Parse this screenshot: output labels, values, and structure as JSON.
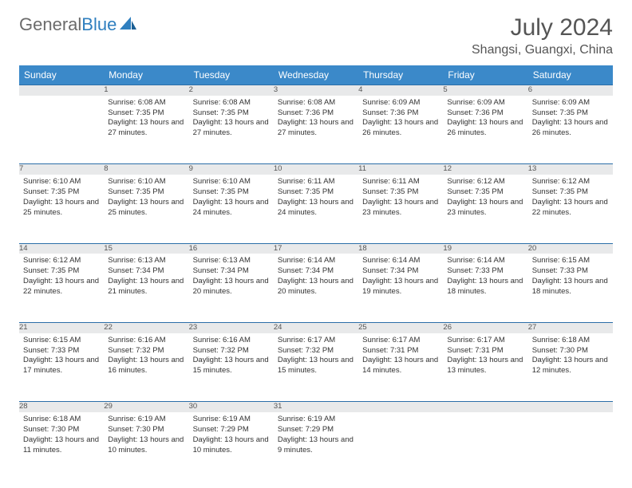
{
  "logo": {
    "textGray": "General",
    "textBlue": "Blue"
  },
  "header": {
    "title": "July 2024",
    "location": "Shangsi, Guangxi, China"
  },
  "colors": {
    "headerBg": "#3b89c9",
    "headerText": "#ffffff",
    "dayNumBg": "#e8e9ea",
    "dayBorderTop": "#2b6ea8",
    "bodyText": "#333333",
    "titleText": "#555555",
    "logoGray": "#6b6b6b",
    "logoBlue": "#2f7fbf"
  },
  "weekdays": [
    "Sunday",
    "Monday",
    "Tuesday",
    "Wednesday",
    "Thursday",
    "Friday",
    "Saturday"
  ],
  "firstWeekday": 1,
  "days": [
    {
      "n": 1,
      "sunrise": "6:08 AM",
      "sunset": "7:35 PM",
      "dl": "13 hours and 27 minutes."
    },
    {
      "n": 2,
      "sunrise": "6:08 AM",
      "sunset": "7:35 PM",
      "dl": "13 hours and 27 minutes."
    },
    {
      "n": 3,
      "sunrise": "6:08 AM",
      "sunset": "7:36 PM",
      "dl": "13 hours and 27 minutes."
    },
    {
      "n": 4,
      "sunrise": "6:09 AM",
      "sunset": "7:36 PM",
      "dl": "13 hours and 26 minutes."
    },
    {
      "n": 5,
      "sunrise": "6:09 AM",
      "sunset": "7:36 PM",
      "dl": "13 hours and 26 minutes."
    },
    {
      "n": 6,
      "sunrise": "6:09 AM",
      "sunset": "7:35 PM",
      "dl": "13 hours and 26 minutes."
    },
    {
      "n": 7,
      "sunrise": "6:10 AM",
      "sunset": "7:35 PM",
      "dl": "13 hours and 25 minutes."
    },
    {
      "n": 8,
      "sunrise": "6:10 AM",
      "sunset": "7:35 PM",
      "dl": "13 hours and 25 minutes."
    },
    {
      "n": 9,
      "sunrise": "6:10 AM",
      "sunset": "7:35 PM",
      "dl": "13 hours and 24 minutes."
    },
    {
      "n": 10,
      "sunrise": "6:11 AM",
      "sunset": "7:35 PM",
      "dl": "13 hours and 24 minutes."
    },
    {
      "n": 11,
      "sunrise": "6:11 AM",
      "sunset": "7:35 PM",
      "dl": "13 hours and 23 minutes."
    },
    {
      "n": 12,
      "sunrise": "6:12 AM",
      "sunset": "7:35 PM",
      "dl": "13 hours and 23 minutes."
    },
    {
      "n": 13,
      "sunrise": "6:12 AM",
      "sunset": "7:35 PM",
      "dl": "13 hours and 22 minutes."
    },
    {
      "n": 14,
      "sunrise": "6:12 AM",
      "sunset": "7:35 PM",
      "dl": "13 hours and 22 minutes."
    },
    {
      "n": 15,
      "sunrise": "6:13 AM",
      "sunset": "7:34 PM",
      "dl": "13 hours and 21 minutes."
    },
    {
      "n": 16,
      "sunrise": "6:13 AM",
      "sunset": "7:34 PM",
      "dl": "13 hours and 20 minutes."
    },
    {
      "n": 17,
      "sunrise": "6:14 AM",
      "sunset": "7:34 PM",
      "dl": "13 hours and 20 minutes."
    },
    {
      "n": 18,
      "sunrise": "6:14 AM",
      "sunset": "7:34 PM",
      "dl": "13 hours and 19 minutes."
    },
    {
      "n": 19,
      "sunrise": "6:14 AM",
      "sunset": "7:33 PM",
      "dl": "13 hours and 18 minutes."
    },
    {
      "n": 20,
      "sunrise": "6:15 AM",
      "sunset": "7:33 PM",
      "dl": "13 hours and 18 minutes."
    },
    {
      "n": 21,
      "sunrise": "6:15 AM",
      "sunset": "7:33 PM",
      "dl": "13 hours and 17 minutes."
    },
    {
      "n": 22,
      "sunrise": "6:16 AM",
      "sunset": "7:32 PM",
      "dl": "13 hours and 16 minutes."
    },
    {
      "n": 23,
      "sunrise": "6:16 AM",
      "sunset": "7:32 PM",
      "dl": "13 hours and 15 minutes."
    },
    {
      "n": 24,
      "sunrise": "6:17 AM",
      "sunset": "7:32 PM",
      "dl": "13 hours and 15 minutes."
    },
    {
      "n": 25,
      "sunrise": "6:17 AM",
      "sunset": "7:31 PM",
      "dl": "13 hours and 14 minutes."
    },
    {
      "n": 26,
      "sunrise": "6:17 AM",
      "sunset": "7:31 PM",
      "dl": "13 hours and 13 minutes."
    },
    {
      "n": 27,
      "sunrise": "6:18 AM",
      "sunset": "7:30 PM",
      "dl": "13 hours and 12 minutes."
    },
    {
      "n": 28,
      "sunrise": "6:18 AM",
      "sunset": "7:30 PM",
      "dl": "13 hours and 11 minutes."
    },
    {
      "n": 29,
      "sunrise": "6:19 AM",
      "sunset": "7:30 PM",
      "dl": "13 hours and 10 minutes."
    },
    {
      "n": 30,
      "sunrise": "6:19 AM",
      "sunset": "7:29 PM",
      "dl": "13 hours and 10 minutes."
    },
    {
      "n": 31,
      "sunrise": "6:19 AM",
      "sunset": "7:29 PM",
      "dl": "13 hours and 9 minutes."
    }
  ],
  "labels": {
    "sunrise": "Sunrise:",
    "sunset": "Sunset:",
    "daylight": "Daylight:"
  }
}
